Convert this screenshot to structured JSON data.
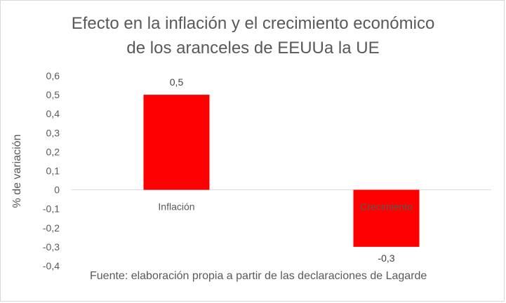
{
  "chart_data": {
    "type": "bar",
    "title_line1": "Efecto en la inflación y el crecimiento económico",
    "title_line2": "de los aranceles de EEUUa la UE",
    "ylabel": "% de variación",
    "xlabel": "",
    "categories": [
      "Inflación",
      "Crecimiento"
    ],
    "values": [
      0.5,
      -0.3
    ],
    "value_labels": [
      "0,5",
      "-0,3"
    ],
    "ylim": [
      -0.4,
      0.6
    ],
    "yticks": [
      "0,6",
      "0,5",
      "0,4",
      "0,3",
      "0,2",
      "0,1",
      "0",
      "-0,1",
      "-0,2",
      "-0,3",
      "-0,4"
    ],
    "ytick_values": [
      0.6,
      0.5,
      0.4,
      0.3,
      0.2,
      0.1,
      0,
      -0.1,
      -0.2,
      -0.3,
      -0.4
    ],
    "bar_color": "#ff0000",
    "grid": false,
    "legend": "none",
    "source": "Fuente: elaboración propia a partir de las declaraciones de Lagarde"
  }
}
